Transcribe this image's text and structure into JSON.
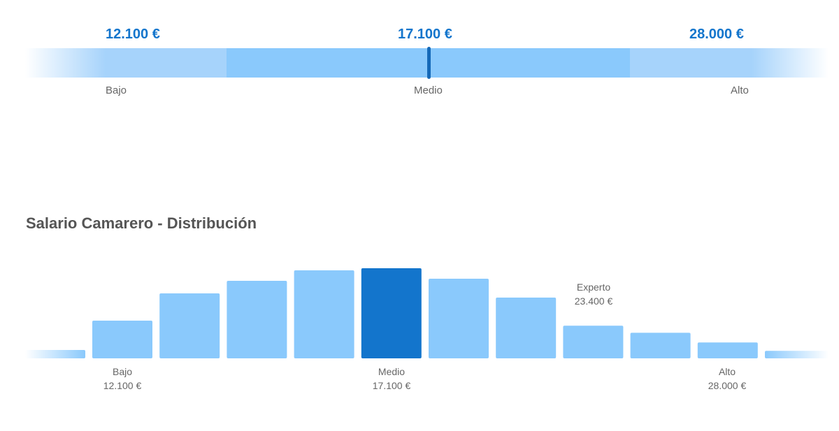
{
  "range": {
    "low_value": "12.100 €",
    "median_value": "17.100 €",
    "high_value": "28.000 €",
    "low_label": "Bajo",
    "median_label": "Medio",
    "high_label": "Alto"
  },
  "distribution": {
    "title": "Salario Camarero - Distribución",
    "labels": {
      "low_name": "Bajo",
      "low_value": "12.100 €",
      "median_name": "Medio",
      "median_value": "17.100 €",
      "high_name": "Alto",
      "high_value": "28.000 €",
      "expert_name": "Experto",
      "expert_value": "23.400 €"
    }
  },
  "colors": {
    "accent": "#1375cc",
    "bar": "#8ac9fc",
    "bar_highlight": "#1375cc",
    "range_outer": "#a6d3fb"
  },
  "chart_data": {
    "type": "bar",
    "title": "Salario Camarero - Distribución",
    "xlabel": "",
    "ylabel": "",
    "values": [
      2,
      9,
      15.5,
      18.5,
      21,
      21.5,
      19,
      14.5,
      7.8,
      6.1,
      3.8,
      1.8
    ],
    "highlight_index": 5,
    "faded_ends": true,
    "annotations": [
      {
        "bar_index": 1,
        "label": "Bajo",
        "value": "12.100 €"
      },
      {
        "bar_index": 5,
        "label": "Medio",
        "value": "17.100 €"
      },
      {
        "bar_index": 8,
        "label": "Experto",
        "value": "23.400 €"
      },
      {
        "bar_index": 10,
        "label": "Alto",
        "value": "28.000 €"
      }
    ]
  }
}
